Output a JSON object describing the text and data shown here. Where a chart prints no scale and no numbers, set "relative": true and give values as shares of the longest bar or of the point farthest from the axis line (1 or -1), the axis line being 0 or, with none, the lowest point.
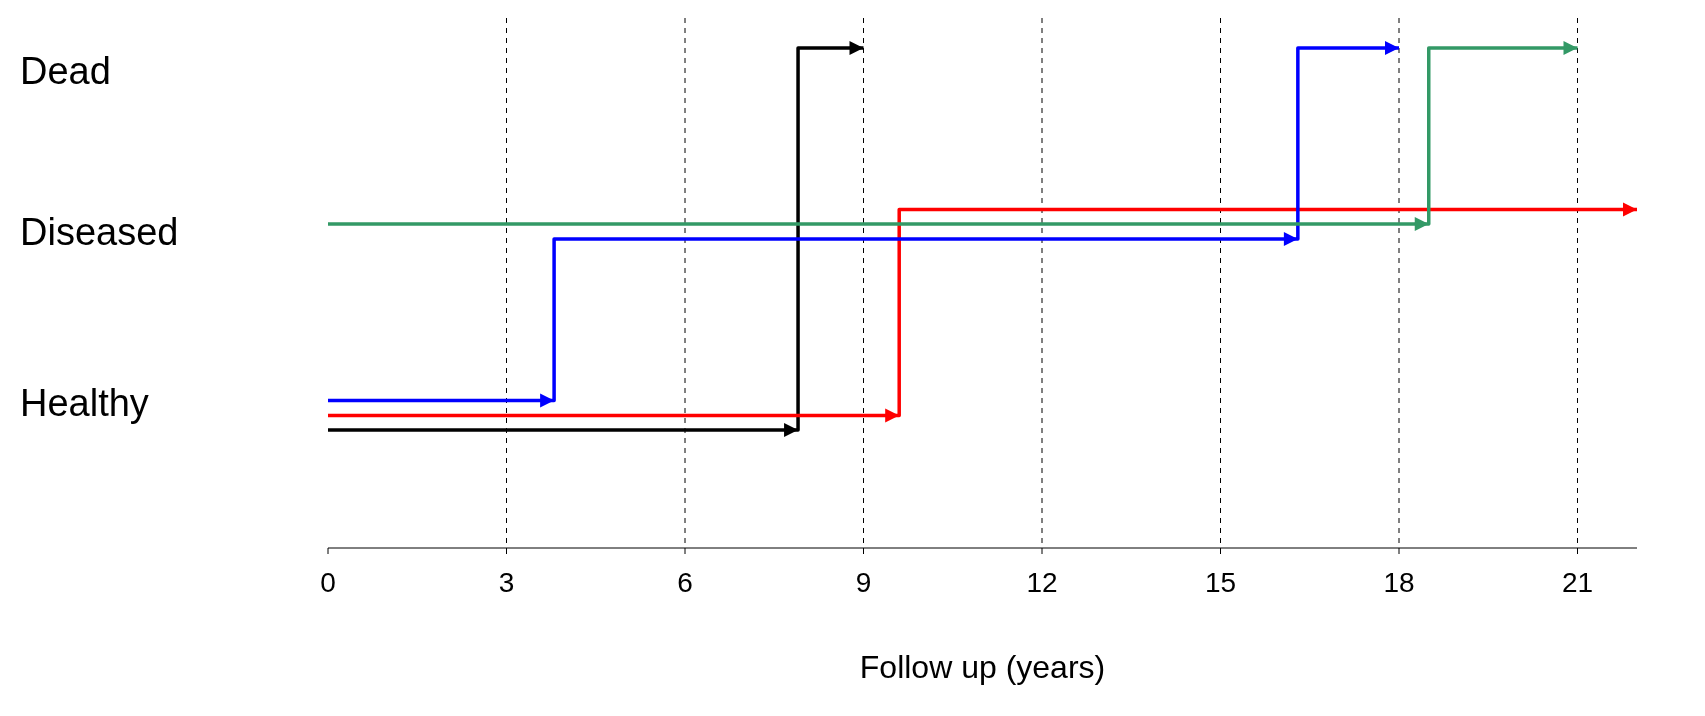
{
  "chart_data": {
    "type": "step",
    "relative": true,
    "xlabel": "Follow up (years)",
    "xlim": [
      0,
      22
    ],
    "xticks": [
      0,
      3,
      6,
      9,
      12,
      15,
      18,
      21
    ],
    "annotations": [
      "Dead",
      "Diseased",
      "Healthy"
    ],
    "grid": "x",
    "line_style": "solid",
    "series": [
      {
        "color": "#000000",
        "x": [
          0,
          7.9,
          9
        ],
        "values": [
          0.236,
          1.0,
          1.0
        ]
      },
      {
        "color": "#ff0000",
        "x": [
          0,
          9.6,
          22
        ],
        "values": [
          0.265,
          0.677,
          0.677
        ]
      },
      {
        "color": "#0000ff",
        "x": [
          0,
          3.8,
          16.3,
          18
        ],
        "values": [
          0.295,
          0.618,
          1.0,
          1.0
        ]
      },
      {
        "color": "#339966",
        "x": [
          0,
          18.5,
          21
        ],
        "values": [
          0.648,
          1.0,
          1.0
        ]
      }
    ]
  }
}
